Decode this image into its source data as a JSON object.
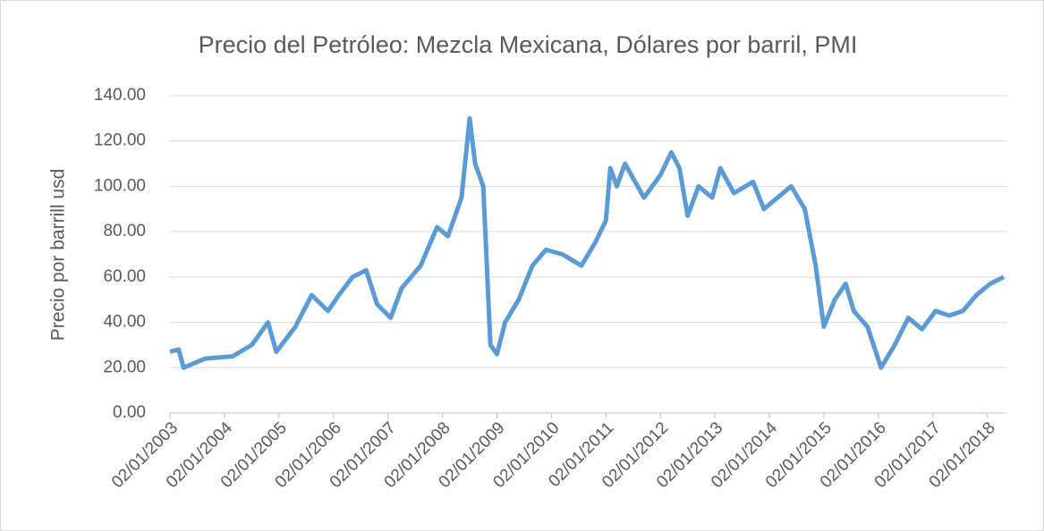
{
  "chart_data": {
    "type": "line",
    "title": "Precio del Petróleo: Mezcla Mexicana, Dólares por barril, PMI",
    "y_label": "Precio por barrill usd",
    "x": [
      2003.0,
      2003.16,
      2003.25,
      2003.65,
      2004.15,
      2004.5,
      2004.8,
      2004.95,
      2005.3,
      2005.6,
      2005.9,
      2006.1,
      2006.35,
      2006.6,
      2006.8,
      2007.05,
      2007.25,
      2007.6,
      2007.9,
      2008.1,
      2008.35,
      2008.5,
      2008.6,
      2008.75,
      2008.88,
      2009.0,
      2009.15,
      2009.4,
      2009.65,
      2009.9,
      2010.2,
      2010.55,
      2010.8,
      2011.0,
      2011.08,
      2011.2,
      2011.35,
      2011.7,
      2012.0,
      2012.2,
      2012.35,
      2012.5,
      2012.7,
      2012.95,
      2013.1,
      2013.35,
      2013.7,
      2013.9,
      2014.15,
      2014.4,
      2014.65,
      2014.85,
      2015.0,
      2015.2,
      2015.4,
      2015.55,
      2015.8,
      2016.05,
      2016.3,
      2016.55,
      2016.8,
      2017.05,
      2017.3,
      2017.55,
      2017.8,
      2018.05,
      2018.3
    ],
    "series": [
      {
        "name": "PMI",
        "color": "#5b9bd5",
        "values": [
          27,
          28,
          20,
          24,
          25,
          30,
          40,
          27,
          38,
          52,
          45,
          52,
          60,
          63,
          48,
          42,
          55,
          65,
          82,
          78,
          95,
          130,
          110,
          100,
          30,
          26,
          40,
          50,
          65,
          72,
          70,
          65,
          75,
          85,
          108,
          100,
          110,
          95,
          105,
          115,
          108,
          87,
          100,
          95,
          108,
          97,
          102,
          90,
          95,
          100,
          90,
          65,
          38,
          50,
          57,
          45,
          38,
          20,
          30,
          42,
          37,
          45,
          43,
          45,
          52,
          57,
          60
        ]
      }
    ],
    "xlim": [
      2003,
      2018.35
    ],
    "xticks": [
      {
        "value": 2003,
        "label": "02/01/2003"
      },
      {
        "value": 2004,
        "label": "02/01/2004"
      },
      {
        "value": 2005,
        "label": "02/01/2005"
      },
      {
        "value": 2006,
        "label": "02/01/2006"
      },
      {
        "value": 2007,
        "label": "02/01/2007"
      },
      {
        "value": 2008,
        "label": "02/01/2008"
      },
      {
        "value": 2009,
        "label": "02/01/2009"
      },
      {
        "value": 2010,
        "label": "02/01/2010"
      },
      {
        "value": 2011,
        "label": "02/01/2011"
      },
      {
        "value": 2012,
        "label": "02/01/2012"
      },
      {
        "value": 2013,
        "label": "02/01/2013"
      },
      {
        "value": 2014,
        "label": "02/01/2014"
      },
      {
        "value": 2015,
        "label": "02/01/2015"
      },
      {
        "value": 2016,
        "label": "02/01/2016"
      },
      {
        "value": 2017,
        "label": "02/01/2017"
      },
      {
        "value": 2018,
        "label": "02/01/2018"
      }
    ],
    "ylim": [
      0,
      140
    ],
    "yticks": [
      {
        "value": 0,
        "label": "0.00"
      },
      {
        "value": 20,
        "label": "20.00"
      },
      {
        "value": 40,
        "label": "40.00"
      },
      {
        "value": 60,
        "label": "60.00"
      },
      {
        "value": 80,
        "label": "80.00"
      },
      {
        "value": 100,
        "label": "100.00"
      },
      {
        "value": 120,
        "label": "120.00"
      },
      {
        "value": 140,
        "label": "140.00"
      }
    ],
    "grid": true
  }
}
